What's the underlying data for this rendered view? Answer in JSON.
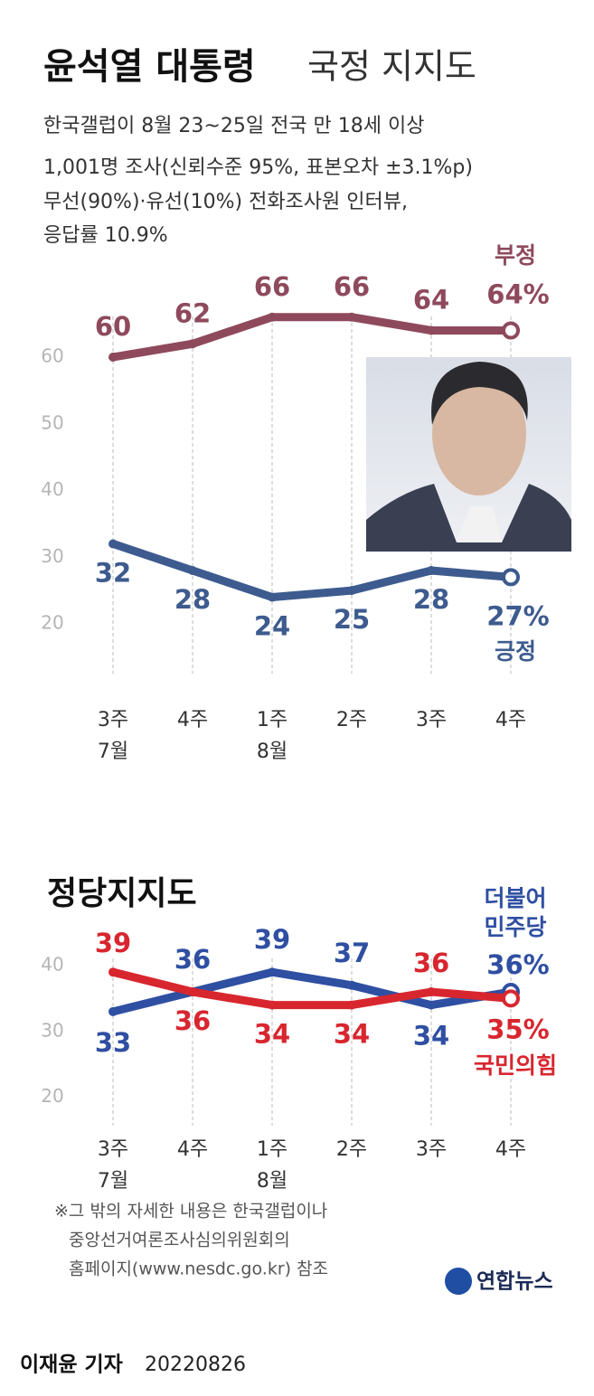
{
  "header": {
    "title_bold": "윤석열 대통령",
    "title_light": "국정 지지도",
    "subtitle": [
      "한국갤럽이 8월 23~25일 전국 만 18세 이상",
      "1,001명 조사(신뢰수준 95%, 표본오차 ±3.1%p)",
      "무선(90%)·유선(10%) 전화조사원 인터뷰,",
      "응답률 10.9%"
    ]
  },
  "chart_data": [
    {
      "type": "line",
      "categories": [
        "3주",
        "4주",
        "1주",
        "2주",
        "3주",
        "4주"
      ],
      "category_groups": [
        "7월",
        null,
        "8월",
        null,
        null,
        null
      ],
      "ylim": [
        12,
        72
      ],
      "yticks": [
        20,
        30,
        40,
        50,
        60
      ],
      "grid": false,
      "series": [
        {
          "name": "부정",
          "color": "#8e4a5c",
          "values": [
            60,
            62,
            66,
            66,
            64,
            64
          ],
          "value_labels": [
            "60",
            "62",
            "66",
            "66",
            "64",
            "64%"
          ]
        },
        {
          "name": "긍정",
          "color": "#3d5b8e",
          "values": [
            32,
            28,
            24,
            25,
            28,
            27
          ],
          "value_labels": [
            "32",
            "28",
            "24",
            "25",
            "28",
            "27%"
          ]
        }
      ]
    },
    {
      "type": "line",
      "title": "정당지지도",
      "categories": [
        "3주",
        "4주",
        "1주",
        "2주",
        "3주",
        "4주"
      ],
      "category_groups": [
        "7월",
        null,
        "8월",
        null,
        null,
        null
      ],
      "ylim": [
        15,
        45
      ],
      "yticks": [
        20,
        30,
        40
      ],
      "grid": false,
      "series": [
        {
          "name": "더불어민주당",
          "color": "#2f4fa2",
          "values": [
            33,
            36,
            39,
            37,
            34,
            36
          ],
          "value_labels": [
            "33",
            "36",
            "39",
            "37",
            "34",
            "36%"
          ]
        },
        {
          "name": "국민의힘",
          "color": "#d8262f",
          "values": [
            39,
            36,
            34,
            34,
            36,
            35
          ],
          "value_labels": [
            "39",
            "36",
            "34",
            "34",
            "36",
            "35%"
          ]
        }
      ]
    }
  ],
  "footnote": [
    "※그 밖의 자세한 내용은 한국갤럽이나",
    "중앙선거여론조사심의위원회의",
    "홈페이지(www.nesdc.go.kr) 참조"
  ],
  "logo": "연합뉴스",
  "byline": {
    "reporter": "이재윤 기자",
    "date": "20220826"
  }
}
